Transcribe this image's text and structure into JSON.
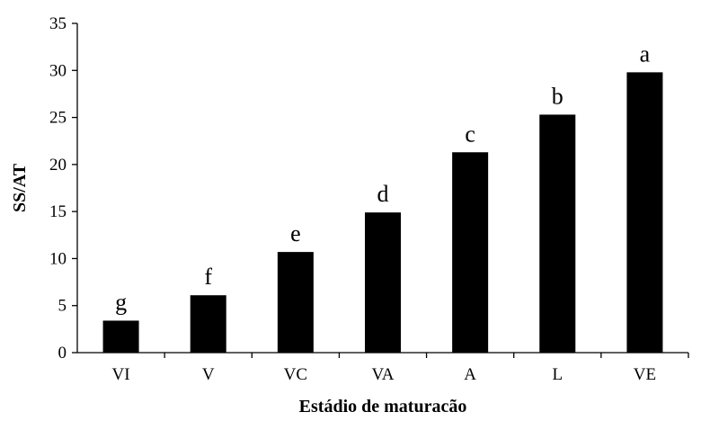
{
  "chart_data": {
    "type": "bar",
    "title": "",
    "xlabel": "Estádio de maturacão",
    "ylabel": "SS/AT",
    "ylim": [
      0,
      35
    ],
    "yticks": [
      0,
      5,
      10,
      15,
      20,
      25,
      30,
      35
    ],
    "grid": false,
    "categories": [
      "VI",
      "V",
      "VC",
      "VA",
      "A",
      "L",
      "VE"
    ],
    "values": [
      3.4,
      6.1,
      10.7,
      14.9,
      21.3,
      25.3,
      29.8
    ],
    "significance_letters": [
      "g",
      "f",
      "e",
      "d",
      "c",
      "b",
      "a"
    ],
    "bar_color": "#000000"
  }
}
